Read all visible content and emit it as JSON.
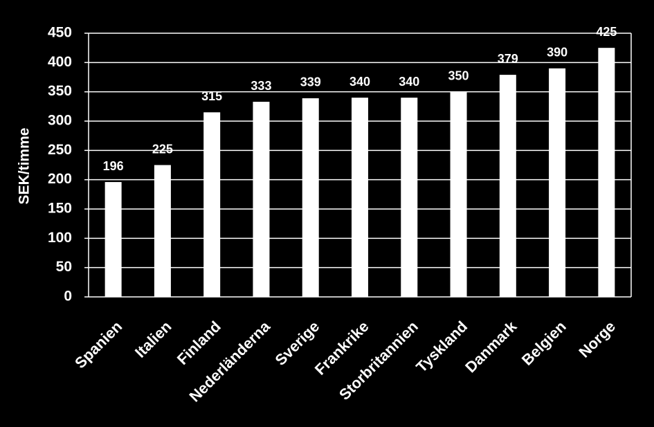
{
  "chart_data": {
    "type": "bar",
    "y_label": "SEK/timme",
    "categories": [
      "Spanien",
      "Italien",
      "Finland",
      "Nederländerna",
      "Sverige",
      "Frankrike",
      "Storbritannien",
      "Tyskland",
      "Danmark",
      "Belgien",
      "Norge"
    ],
    "values": [
      196,
      225,
      315,
      333,
      339,
      340,
      340,
      350,
      379,
      390,
      425
    ],
    "color": "#ffffff",
    "ylim": [
      0,
      450
    ],
    "yticks": [
      0,
      50,
      100,
      150,
      200,
      250,
      300,
      350,
      400,
      450
    ],
    "grid": true
  }
}
